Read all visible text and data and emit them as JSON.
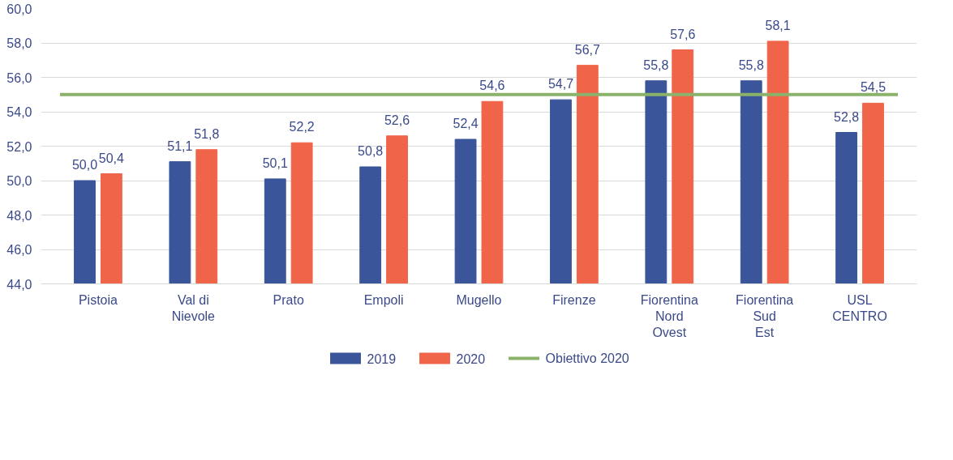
{
  "chart_data": {
    "type": "bar",
    "categories": [
      "Pistoia",
      "Val di\nNievole",
      "Prato",
      "Empoli",
      "Mugello",
      "Firenze",
      "Fiorentina\nNord\nOvest",
      "Fiorentina\nSud\nEst",
      "USL\nCENTRO"
    ],
    "series": [
      {
        "name": "2019",
        "color": "#3a5599",
        "values": [
          50.0,
          51.1,
          50.1,
          50.8,
          52.4,
          54.7,
          55.8,
          55.8,
          52.8
        ],
        "value_labels": [
          "50,0",
          "51,1",
          "50,1",
          "50,8",
          "52,4",
          "54,7",
          "55,8",
          "55,8",
          "52,8"
        ]
      },
      {
        "name": "2020",
        "color": "#f0654a",
        "values": [
          50.4,
          51.8,
          52.2,
          52.6,
          54.6,
          56.7,
          57.6,
          58.1,
          54.5
        ],
        "value_labels": [
          "50,4",
          "51,8",
          "52,2",
          "52,6",
          "54,6",
          "56,7",
          "57,6",
          "58,1",
          "54,5"
        ]
      }
    ],
    "ref_lines": [
      {
        "axis": "y",
        "value": 55.0,
        "label": "Obiettivo 2020",
        "color": "#8ab26a"
      }
    ],
    "ylim": [
      44,
      60
    ],
    "yticks": [
      {
        "value": 44,
        "label": "44,0"
      },
      {
        "value": 46,
        "label": "46,0"
      },
      {
        "value": 48,
        "label": "48,0"
      },
      {
        "value": 50,
        "label": "50,0"
      },
      {
        "value": 52,
        "label": "52,0"
      },
      {
        "value": 54,
        "label": "54,0"
      },
      {
        "value": 56,
        "label": "56,0"
      },
      {
        "value": 58,
        "label": "58,0"
      },
      {
        "value": 60,
        "label": "60,0"
      }
    ],
    "grid": "y",
    "legend": "bottom"
  }
}
